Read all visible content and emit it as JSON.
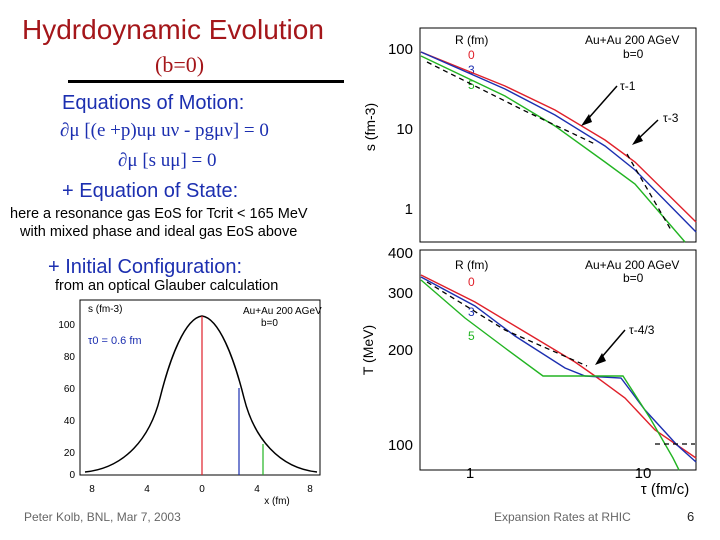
{
  "slide": {
    "title": "Hydrdoynamic Evolution",
    "subtitle": "(b=0)",
    "eom_heading": "Equations of Motion:",
    "eq1": "∂μ [(e +p)uμ uν - pgμν] = 0",
    "eq2": "∂μ [s uμ] = 0",
    "eos_heading": "+ Equation of State:",
    "eos_note_1": "here a resonance gas EoS for Tcrit < 165 MeV",
    "eos_note_2": "with mixed phase and ideal gas EoS above",
    "init_heading": "+ Initial Configuration:",
    "init_note": "from an optical Glauber calculation",
    "footer_left": "Peter Kolb, BNL, Mar 7, 2003",
    "footer_right": "Expansion Rates at RHIC",
    "page_number": "6"
  },
  "colors": {
    "title": "#a4161a",
    "text_blue": "#1c2fb0",
    "curve_red": "#e0202a",
    "curve_blue": "#1c2fb0",
    "curve_green": "#22b422"
  },
  "chart_data": [
    {
      "type": "line",
      "panel": "entropy density vs time",
      "ylabel": "s (fm-3)",
      "legend_header": "R (fm)",
      "collision": "Au+Au 200 AGeV",
      "b": "b=0",
      "yscale": "log",
      "ylim": [
        0.5,
        140
      ],
      "yticks": [
        "100",
        "10",
        "1"
      ],
      "series": [
        {
          "name": "0",
          "color": "red",
          "x": [
            0.6,
            1,
            2,
            4,
            6,
            8,
            12,
            20
          ],
          "y": [
            100,
            62,
            33,
            17,
            11.5,
            7.5,
            4.5,
            2.5
          ]
        },
        {
          "name": "3",
          "color": "blue",
          "x": [
            0.6,
            1,
            2,
            4,
            6,
            8,
            12,
            20
          ],
          "y": [
            100,
            62,
            32,
            15.5,
            10,
            6.5,
            3.5,
            1.5
          ]
        },
        {
          "name": "5",
          "color": "green",
          "x": [
            0.6,
            1,
            2,
            4,
            6,
            8,
            12,
            20
          ],
          "y": [
            100,
            60,
            29,
            13,
            8,
            5,
            2.2,
            0.8
          ]
        }
      ],
      "annotations": [
        "τ-1",
        "τ-3"
      ]
    },
    {
      "type": "line",
      "panel": "temperature vs time",
      "ylabel": "T (MeV)",
      "xlabel": "τ (fm/c)",
      "legend_header": "R (fm)",
      "collision": "Au+Au 200 AGeV",
      "b": "b=0",
      "yscale": "log",
      "ylim": [
        90,
        400
      ],
      "yticks": [
        "400",
        "300",
        "200",
        "100"
      ],
      "xscale": "log",
      "xlim": [
        0.6,
        20
      ],
      "xticks": [
        "1",
        "10"
      ],
      "series": [
        {
          "name": "0",
          "color": "red",
          "x": [
            0.6,
            1,
            2,
            4,
            6,
            7,
            10,
            14,
            20
          ],
          "y": [
            340,
            280,
            222,
            178,
            168,
            165,
            140,
            118,
            100
          ]
        },
        {
          "name": "3",
          "color": "blue",
          "x": [
            0.6,
            1,
            2,
            4,
            6,
            7,
            10,
            14,
            20
          ],
          "y": [
            340,
            276,
            212,
            172,
            165,
            165,
            134,
            112,
            95
          ]
        },
        {
          "name": "5",
          "color": "green",
          "x": [
            0.6,
            1,
            2,
            2.8,
            6,
            7,
            10,
            14,
            20
          ],
          "y": [
            340,
            268,
            190,
            165,
            165,
            160,
            128,
            105,
            90
          ]
        }
      ],
      "annotations": [
        "τ-4/3"
      ]
    },
    {
      "type": "line",
      "panel": "initial entropy density profile",
      "ylabel": "s (fm-3)",
      "xlabel": "x (fm)",
      "collision": "Au+Au 200 AGeV",
      "b": "b=0",
      "tau0": "τ0 = 0.6 fm",
      "xticks": [
        "8",
        "4",
        "0",
        "4",
        "8"
      ],
      "yticks": [
        "100",
        "80",
        "60",
        "40",
        "20",
        "0"
      ],
      "ylim": [
        0,
        110
      ],
      "markers": [
        {
          "name": "0",
          "color": "red",
          "x": 0
        },
        {
          "name": "3",
          "color": "blue",
          "x": 3
        },
        {
          "name": "5",
          "color": "green",
          "x": 5
        }
      ]
    }
  ]
}
